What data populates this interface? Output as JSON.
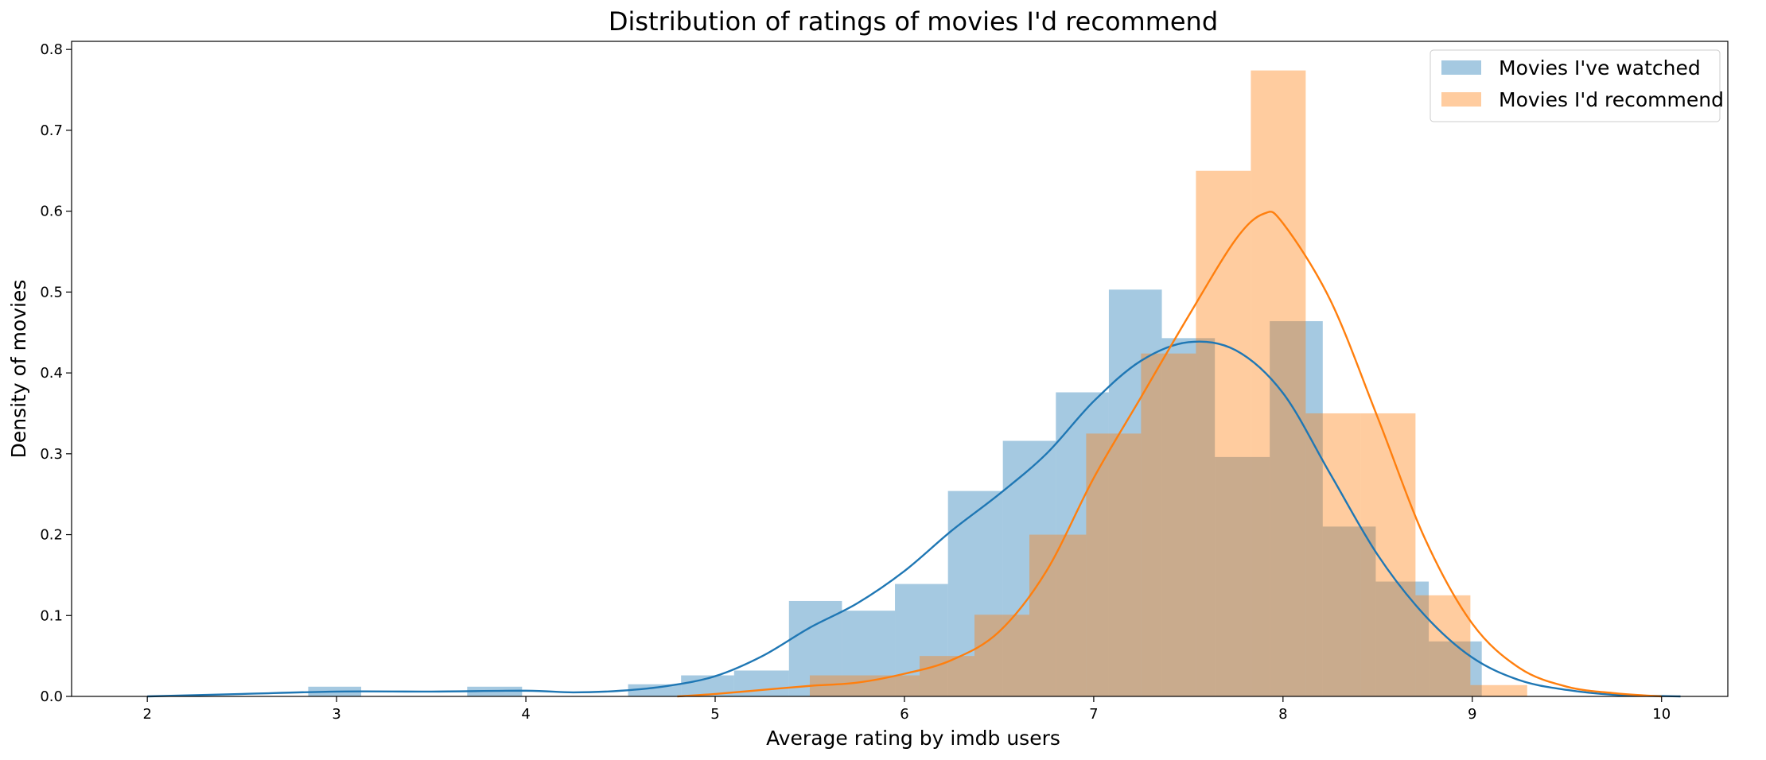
{
  "chart_data": {
    "type": "histogram+kde",
    "title": "Distribution of ratings of movies I'd recommend",
    "xlabel": "Average rating by imdb users",
    "ylabel": "Density of movies",
    "xlim": [
      1.6,
      10.35
    ],
    "ylim": [
      0,
      0.81
    ],
    "xticks": [
      2,
      3,
      4,
      5,
      6,
      7,
      8,
      9,
      10
    ],
    "yticks": [
      0.0,
      0.1,
      0.2,
      0.3,
      0.4,
      0.5,
      0.6,
      0.7,
      0.8
    ],
    "grid": false,
    "legend_position": "top-right",
    "series": [
      {
        "name": "Movies I've watched",
        "color": "#1f77b4",
        "bins": [
          {
            "x0": 2.0,
            "x1": 2.28,
            "y": 0.0
          },
          {
            "x0": 2.28,
            "x1": 2.57,
            "y": 0.0
          },
          {
            "x0": 2.57,
            "x1": 2.85,
            "y": 0.0
          },
          {
            "x0": 2.85,
            "x1": 3.13,
            "y": 0.012
          },
          {
            "x0": 3.13,
            "x1": 3.41,
            "y": 0.0
          },
          {
            "x0": 3.41,
            "x1": 3.69,
            "y": 0.0
          },
          {
            "x0": 3.69,
            "x1": 3.98,
            "y": 0.012
          },
          {
            "x0": 3.98,
            "x1": 4.26,
            "y": 0.0
          },
          {
            "x0": 4.26,
            "x1": 4.54,
            "y": 0.0
          },
          {
            "x0": 4.54,
            "x1": 4.82,
            "y": 0.015
          },
          {
            "x0": 4.82,
            "x1": 5.1,
            "y": 0.026
          },
          {
            "x0": 5.1,
            "x1": 5.39,
            "y": 0.032
          },
          {
            "x0": 5.39,
            "x1": 5.67,
            "y": 0.118
          },
          {
            "x0": 5.67,
            "x1": 5.95,
            "y": 0.106
          },
          {
            "x0": 5.95,
            "x1": 6.23,
            "y": 0.139
          },
          {
            "x0": 6.23,
            "x1": 6.52,
            "y": 0.254
          },
          {
            "x0": 6.52,
            "x1": 6.8,
            "y": 0.316
          },
          {
            "x0": 6.8,
            "x1": 7.08,
            "y": 0.376
          },
          {
            "x0": 7.08,
            "x1": 7.36,
            "y": 0.503
          },
          {
            "x0": 7.36,
            "x1": 7.64,
            "y": 0.443
          },
          {
            "x0": 7.64,
            "x1": 7.93,
            "y": 0.296
          },
          {
            "x0": 7.93,
            "x1": 8.21,
            "y": 0.464
          },
          {
            "x0": 8.21,
            "x1": 8.49,
            "y": 0.21
          },
          {
            "x0": 8.49,
            "x1": 8.77,
            "y": 0.142
          },
          {
            "x0": 8.77,
            "x1": 9.05,
            "y": 0.068
          }
        ],
        "kde": [
          [
            2.0,
            0.0
          ],
          [
            2.5,
            0.003
          ],
          [
            3.0,
            0.006
          ],
          [
            3.5,
            0.006
          ],
          [
            4.0,
            0.007
          ],
          [
            4.25,
            0.005
          ],
          [
            4.5,
            0.007
          ],
          [
            4.75,
            0.013
          ],
          [
            5.0,
            0.025
          ],
          [
            5.25,
            0.05
          ],
          [
            5.5,
            0.085
          ],
          [
            5.75,
            0.115
          ],
          [
            6.0,
            0.155
          ],
          [
            6.25,
            0.205
          ],
          [
            6.5,
            0.25
          ],
          [
            6.75,
            0.3
          ],
          [
            7.0,
            0.365
          ],
          [
            7.25,
            0.415
          ],
          [
            7.5,
            0.438
          ],
          [
            7.75,
            0.428
          ],
          [
            8.0,
            0.375
          ],
          [
            8.25,
            0.275
          ],
          [
            8.5,
            0.175
          ],
          [
            8.75,
            0.1
          ],
          [
            9.0,
            0.048
          ],
          [
            9.25,
            0.02
          ],
          [
            9.5,
            0.008
          ],
          [
            9.75,
            0.002
          ],
          [
            10.1,
            0.0
          ]
        ]
      },
      {
        "name": "Movies I'd recommend",
        "color": "#ff7f0e",
        "bins": [
          {
            "x0": 5.5,
            "x1": 5.79,
            "y": 0.026
          },
          {
            "x0": 5.79,
            "x1": 6.08,
            "y": 0.026
          },
          {
            "x0": 6.08,
            "x1": 6.37,
            "y": 0.05
          },
          {
            "x0": 6.37,
            "x1": 6.66,
            "y": 0.101
          },
          {
            "x0": 6.66,
            "x1": 6.96,
            "y": 0.2
          },
          {
            "x0": 6.96,
            "x1": 7.25,
            "y": 0.325
          },
          {
            "x0": 7.25,
            "x1": 7.54,
            "y": 0.424
          },
          {
            "x0": 7.54,
            "x1": 7.83,
            "y": 0.65
          },
          {
            "x0": 7.83,
            "x1": 8.12,
            "y": 0.774
          },
          {
            "x0": 8.12,
            "x1": 8.41,
            "y": 0.35
          },
          {
            "x0": 8.41,
            "x1": 8.7,
            "y": 0.35
          },
          {
            "x0": 8.7,
            "x1": 8.99,
            "y": 0.125
          },
          {
            "x0": 8.99,
            "x1": 9.29,
            "y": 0.014
          }
        ],
        "kde": [
          [
            4.8,
            0.0
          ],
          [
            5.0,
            0.003
          ],
          [
            5.25,
            0.008
          ],
          [
            5.5,
            0.013
          ],
          [
            5.75,
            0.017
          ],
          [
            6.0,
            0.028
          ],
          [
            6.25,
            0.045
          ],
          [
            6.5,
            0.08
          ],
          [
            6.75,
            0.155
          ],
          [
            7.0,
            0.27
          ],
          [
            7.25,
            0.37
          ],
          [
            7.5,
            0.47
          ],
          [
            7.75,
            0.565
          ],
          [
            7.9,
            0.597
          ],
          [
            8.0,
            0.585
          ],
          [
            8.25,
            0.49
          ],
          [
            8.5,
            0.345
          ],
          [
            8.75,
            0.195
          ],
          [
            9.0,
            0.09
          ],
          [
            9.25,
            0.035
          ],
          [
            9.5,
            0.012
          ],
          [
            9.75,
            0.004
          ],
          [
            10.0,
            0.0
          ]
        ]
      }
    ]
  }
}
